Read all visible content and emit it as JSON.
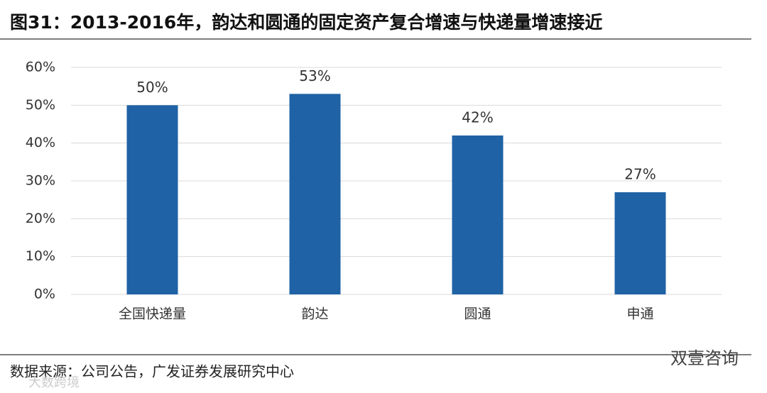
{
  "chart_data": {
    "type": "bar",
    "title": "图31：2013-2016年，韵达和圆通的固定资产复合增速与快递量增速接近",
    "categories": [
      "全国快递量",
      "韵达",
      "圆通",
      "申通"
    ],
    "values": [
      50,
      53,
      42,
      27
    ],
    "value_labels": [
      "50%",
      "53%",
      "42%",
      "27%"
    ],
    "color": "#1f62a5",
    "ylim": [
      0,
      60
    ],
    "yticks": [
      {
        "value": 0,
        "label": "0%"
      },
      {
        "value": 10,
        "label": "10%"
      },
      {
        "value": 20,
        "label": "20%"
      },
      {
        "value": 30,
        "label": "30%"
      },
      {
        "value": 40,
        "label": "40%"
      },
      {
        "value": 50,
        "label": "50%"
      },
      {
        "value": 60,
        "label": "60%"
      }
    ],
    "grid": true,
    "source": "数据来源：公司公告，广发证券发展研究中心",
    "watermarks": [
      "双壹咨询",
      "大数跨境"
    ]
  }
}
